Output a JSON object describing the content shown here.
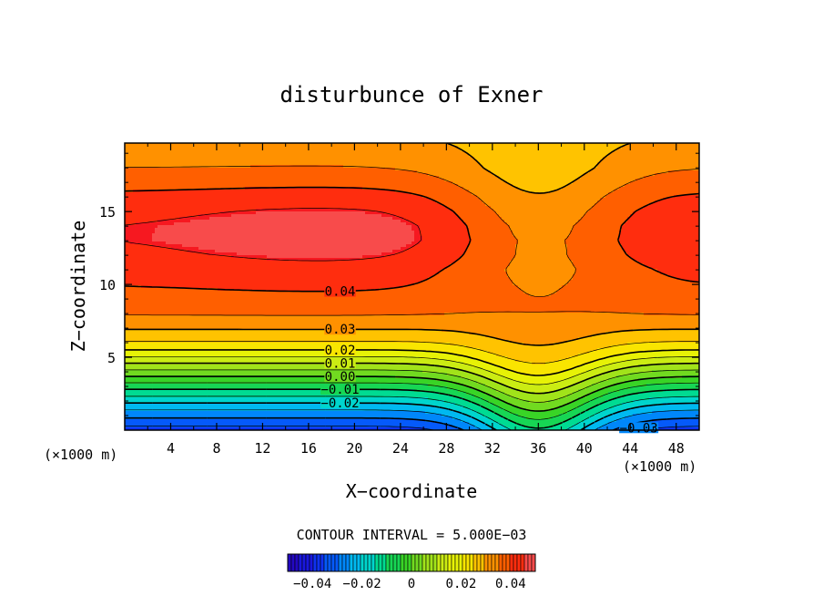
{
  "chart_data": {
    "type": "heatmap",
    "title": "disturbunce of Exner",
    "xlabel": "X−coordinate",
    "ylabel": "Z−coordinate",
    "x_unit": "(×1000 m)",
    "y_unit": "(×1000 m)",
    "xlim": [
      0,
      50
    ],
    "ylim": [
      0,
      19.7
    ],
    "x_ticks": [
      4,
      8,
      12,
      16,
      20,
      24,
      28,
      32,
      36,
      40,
      44,
      48
    ],
    "x_tick_labels": [
      "4",
      "8",
      "12",
      "16",
      "20",
      "24",
      "28",
      "32",
      "36",
      "40",
      "44",
      "48"
    ],
    "y_ticks": [
      5,
      10,
      15
    ],
    "y_tick_labels": [
      "5",
      "10",
      "15"
    ],
    "contour_interval_text": "CONTOUR INTERVAL = 5.000E−03",
    "contour_interval": 0.005,
    "negative_contours": "dashed",
    "contour_labels": [
      {
        "text": "0.04",
        "x": 17.0,
        "value": 0.04
      },
      {
        "text": "0.03",
        "x": 17.0,
        "value": 0.03
      },
      {
        "text": "0.02",
        "x": 17.0,
        "value": 0.02
      },
      {
        "text": "0.01",
        "x": 17.0,
        "value": 0.01
      },
      {
        "text": "0.00",
        "x": 17.0,
        "value": 0.0
      },
      {
        "text": "−0.01",
        "x": 17.0,
        "value": -0.01
      },
      {
        "text": "−0.02",
        "x": 17.0,
        "value": -0.02
      },
      {
        "text": "−0.03",
        "x": 43.0,
        "value": -0.03
      }
    ],
    "colorbar": {
      "range": [
        -0.05,
        0.05
      ],
      "ticks": [
        -0.04,
        -0.02,
        0,
        0.02,
        0.04
      ],
      "tick_labels": [
        "−0.04",
        "−0.02",
        "0",
        "0.02",
        "0.04"
      ]
    },
    "field_model": {
      "base_profile": [
        [
          0,
          -0.0375
        ],
        [
          0.5,
          -0.033
        ],
        [
          1,
          -0.0285
        ],
        [
          1.5,
          -0.024
        ],
        [
          2,
          -0.0185
        ],
        [
          2.5,
          -0.013
        ],
        [
          3,
          -0.008
        ],
        [
          3.5,
          -0.002
        ],
        [
          4,
          0.0035
        ],
        [
          4.5,
          0.009
        ],
        [
          5,
          0.0145
        ],
        [
          5.5,
          0.02
        ],
        [
          6,
          0.0245
        ],
        [
          7,
          0.0305
        ],
        [
          8,
          0.0355
        ],
        [
          9,
          0.0385
        ],
        [
          10,
          0.04
        ],
        [
          11,
          0.0412
        ],
        [
          12,
          0.0432
        ],
        [
          13,
          0.0445
        ],
        [
          14,
          0.0445
        ],
        [
          15,
          0.0432
        ],
        [
          16,
          0.041
        ],
        [
          17,
          0.038
        ],
        [
          18,
          0.035
        ],
        [
          19.7,
          0.0315
        ]
      ],
      "ridge_center_x": 36,
      "ridge_width_x": 6,
      "ridge_max_shift": 2.7,
      "ridge_shift_decay_top": 11.0,
      "upper_dip_amplitude": 0.0115,
      "upper_dip_center_z": 14.5,
      "upper_dip_width_z": 5.5,
      "upper_dip_width_x": 7.5,
      "upper_cell_amplitude": 0.0035,
      "upper_cell_center_x": 17,
      "upper_cell_center_z": 13.3,
      "upper_cell_width_x": 13,
      "upper_cell_width_z": 3
    }
  }
}
